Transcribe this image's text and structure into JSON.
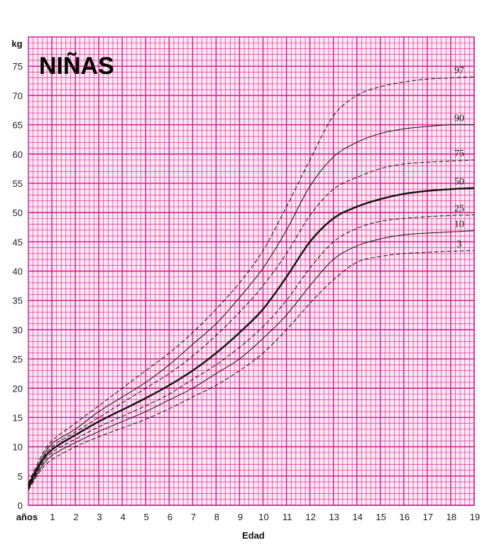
{
  "chart_data": {
    "type": "line",
    "title": "NIÑAS",
    "xlabel": "Edad",
    "x_unit_label": "años",
    "ylabel": "kg",
    "xlim": [
      0,
      19
    ],
    "ylim": [
      0,
      80
    ],
    "x_ticks": [
      1,
      2,
      3,
      4,
      5,
      6,
      7,
      8,
      9,
      10,
      11,
      12,
      13,
      14,
      15,
      16,
      17,
      18,
      19
    ],
    "y_ticks": [
      0,
      5,
      10,
      15,
      20,
      25,
      30,
      35,
      40,
      45,
      50,
      55,
      60,
      65,
      70,
      75
    ],
    "grid": true,
    "grid_minor_x": 0.2,
    "grid_minor_y": 1,
    "colors": {
      "grid": "#d4148a",
      "background": "#fde8f3",
      "line": "#111111"
    },
    "x": [
      0,
      0.5,
      1,
      2,
      3,
      4,
      5,
      6,
      7,
      8,
      9,
      10,
      11,
      12,
      13,
      14,
      15,
      16,
      17,
      18,
      19
    ],
    "series": [
      {
        "name": "97",
        "style": "dashed",
        "values": [
          3.8,
          8,
          11,
          14,
          17,
          20,
          23,
          26,
          29.5,
          33.5,
          38,
          43.5,
          51,
          59,
          66.5,
          70,
          71.5,
          72.3,
          72.8,
          73,
          73.2
        ]
      },
      {
        "name": "90",
        "style": "solid",
        "values": [
          3.6,
          7.5,
          10.5,
          13,
          16,
          18.5,
          21,
          24,
          27.5,
          31,
          35.5,
          40.5,
          47,
          54.5,
          59.5,
          62,
          63.5,
          64.3,
          64.7,
          65,
          65
        ]
      },
      {
        "name": "75",
        "style": "dashed",
        "values": [
          3.4,
          7.2,
          10,
          12.5,
          15,
          17.5,
          20,
          22.5,
          25.5,
          29,
          33,
          37.5,
          43,
          49.5,
          54,
          56,
          57.5,
          58.3,
          58.6,
          58.8,
          59
        ]
      },
      {
        "name": "50",
        "style": "solid-bold",
        "values": [
          3.2,
          7,
          9.5,
          12,
          14.3,
          16.3,
          18.3,
          20.5,
          23,
          26,
          29.5,
          33.5,
          39,
          45,
          49,
          51,
          52.3,
          53.2,
          53.7,
          54,
          54.2
        ]
      },
      {
        "name": "25",
        "style": "dashed",
        "values": [
          3,
          6.5,
          9,
          11.3,
          13.4,
          15.2,
          17,
          19,
          21.5,
          24,
          27,
          30.5,
          35,
          40.5,
          45,
          47.3,
          48.5,
          49,
          49.3,
          49.5,
          49.6
        ]
      },
      {
        "name": "10",
        "style": "solid",
        "values": [
          2.8,
          6.2,
          8.5,
          10.7,
          12.6,
          14.3,
          16,
          18,
          20,
          22.5,
          25,
          28.5,
          32.5,
          37.5,
          42,
          44.3,
          45.5,
          46.2,
          46.5,
          46.7,
          46.9
        ]
      },
      {
        "name": "3",
        "style": "dashed",
        "values": [
          2.6,
          5.8,
          7.8,
          10,
          11.7,
          13.2,
          14.7,
          16.5,
          18.5,
          20.5,
          23,
          26,
          30,
          34.5,
          38.5,
          41.5,
          42.5,
          43,
          43.2,
          43.4,
          43.5
        ]
      }
    ]
  }
}
